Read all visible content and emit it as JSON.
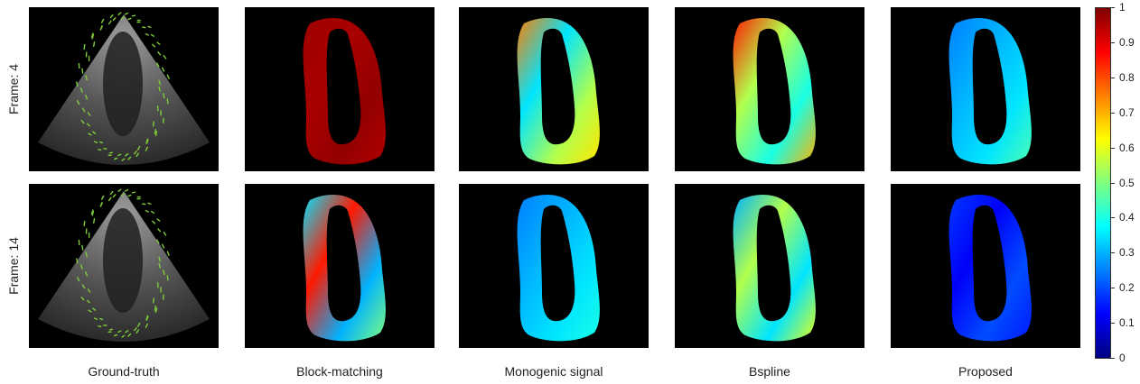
{
  "rows": [
    {
      "label": "Frame: 4"
    },
    {
      "label": "Frame: 14"
    }
  ],
  "columns": [
    {
      "label": "Ground-truth"
    },
    {
      "label": "Block-matching"
    },
    {
      "label": "Monogenic signal"
    },
    {
      "label": "Bspline"
    },
    {
      "label": "Proposed"
    }
  ],
  "colorbar": {
    "ticks": [
      "1",
      "0.9",
      "0.8",
      "0.7",
      "0.6",
      "0.5",
      "0.4",
      "0.3",
      "0.2",
      "0.1",
      "0"
    ],
    "min": 0,
    "max": 1,
    "colormap": "jet"
  },
  "colors": {
    "background": "#000000",
    "vector_field": "#7ecb3a",
    "jet": [
      "#00007f",
      "#0000ff",
      "#007fff",
      "#00ffff",
      "#7fff7f",
      "#ffff00",
      "#ff7f00",
      "#ff0000",
      "#7f0000"
    ]
  },
  "panels": [
    [
      {
        "kind": "ultrasound",
        "vectors": true
      },
      {
        "kind": "myocardium",
        "levels": [
          0.97,
          0.96,
          0.98,
          0.95
        ]
      },
      {
        "kind": "myocardium",
        "levels": [
          0.75,
          0.35,
          0.55,
          0.65
        ]
      },
      {
        "kind": "myocardium",
        "levels": [
          0.85,
          0.55,
          0.4,
          0.7
        ]
      },
      {
        "kind": "myocardium",
        "levels": [
          0.25,
          0.3,
          0.35,
          0.45
        ]
      }
    ],
    [
      {
        "kind": "ultrasound",
        "vectors": true
      },
      {
        "kind": "myocardium",
        "levels": [
          0.35,
          0.85,
          0.3,
          0.5
        ]
      },
      {
        "kind": "myocardium",
        "levels": [
          0.25,
          0.3,
          0.35,
          0.4
        ]
      },
      {
        "kind": "myocardium",
        "levels": [
          0.3,
          0.55,
          0.35,
          0.6
        ]
      },
      {
        "kind": "myocardium",
        "levels": [
          0.18,
          0.12,
          0.2,
          0.15
        ]
      }
    ]
  ]
}
